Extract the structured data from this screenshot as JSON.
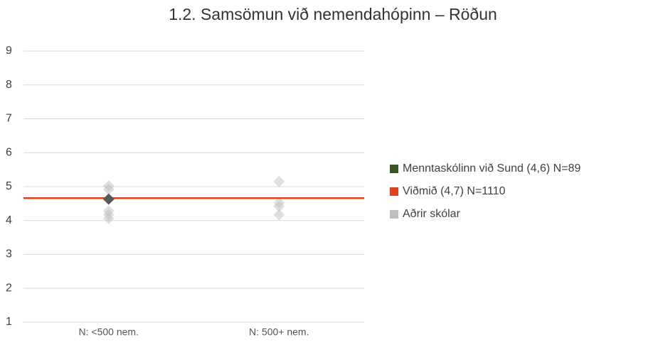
{
  "chart_data": {
    "type": "scatter",
    "title": "1.2. Samsömun við nemendahópinn – Röðun",
    "categories": [
      "N: <500 nem.",
      "N: 500+ nem."
    ],
    "ylim": [
      1,
      9
    ],
    "yticks": [
      1,
      2,
      3,
      4,
      5,
      6,
      7,
      8,
      9
    ],
    "grid": true,
    "legend": "right",
    "series": [
      {
        "name": "Menntaskólinn við Sund (4,6) N=89",
        "color": "#375623",
        "marker_color": "#595959",
        "values": [
          4.63,
          null
        ]
      },
      {
        "name": "Viðmið (4,7) N=1110",
        "color": "#e2401c",
        "value": 4.66
      },
      {
        "name": "Aðrir skólar",
        "color": "#bfbfbf",
        "values": [
          [
            5.02,
            4.92,
            4.28,
            4.17,
            4.06
          ],
          [
            5.15,
            4.52,
            4.42,
            4.17
          ]
        ]
      }
    ]
  }
}
